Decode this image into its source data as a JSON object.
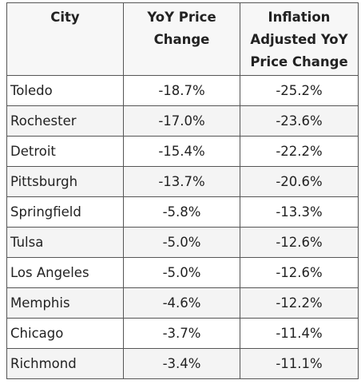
{
  "table": {
    "headers": [
      "City",
      "YoY Price Change",
      "Inflation Adjusted YoY Price Change"
    ],
    "rows": [
      {
        "city": "Toledo",
        "yoy": "-18.7%",
        "adjusted": "-25.2%"
      },
      {
        "city": "Rochester",
        "yoy": "-17.0%",
        "adjusted": "-23.6%"
      },
      {
        "city": "Detroit",
        "yoy": "-15.4%",
        "adjusted": "-22.2%"
      },
      {
        "city": "Pittsburgh",
        "yoy": "-13.7%",
        "adjusted": "-20.6%"
      },
      {
        "city": "Springfield",
        "yoy": "-5.8%",
        "adjusted": "-13.3%"
      },
      {
        "city": "Tulsa",
        "yoy": "-5.0%",
        "adjusted": "-12.6%"
      },
      {
        "city": "Los Angeles",
        "yoy": "-5.0%",
        "adjusted": "-12.6%"
      },
      {
        "city": "Memphis",
        "yoy": "-4.6%",
        "adjusted": "-12.2%"
      },
      {
        "city": "Chicago",
        "yoy": "-3.7%",
        "adjusted": "-11.4%"
      },
      {
        "city": "Richmond",
        "yoy": "-3.4%",
        "adjusted": "-11.1%"
      }
    ]
  }
}
